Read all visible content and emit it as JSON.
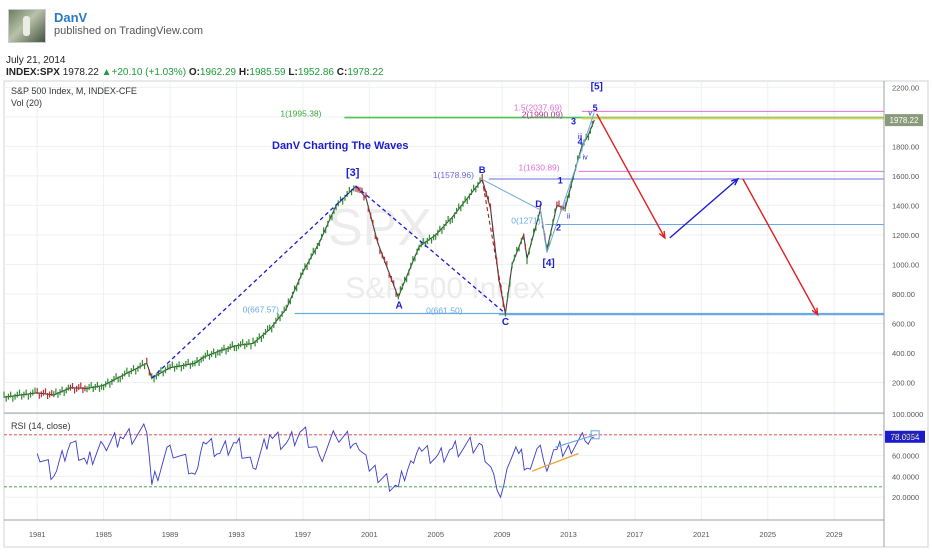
{
  "header": {
    "author": "DanV",
    "published": "published on TradingView.com",
    "date": "July 21, 2014"
  },
  "quote": {
    "symbol": "INDEX:SPX",
    "last": "1978.22",
    "change": "+20.10 (+1.03%)",
    "o_label": "O:",
    "o": "1962.29",
    "h_label": "H:",
    "h": "1985.59",
    "l_label": "L:",
    "l": "1952.86",
    "c_label": "C:",
    "c": "1978.22"
  },
  "chart": {
    "title_line": "S&P 500 Index, M, INDEX-CFE",
    "volume_label": "Vol (20)",
    "watermark_symbol": "SPX",
    "watermark_name": "S&P 500 Index",
    "annotation": "DanV Charting The Waves",
    "last_price_label": "1978.22",
    "rsi_label": "RSI (14, close)",
    "rsi_value_label": "78.0954",
    "wave_labels": [
      "[3]",
      "A",
      "B",
      "C",
      "D",
      "[4]",
      "[5]",
      "1",
      "2",
      "3",
      "4",
      "5",
      "i",
      "ii",
      "iii",
      "iv",
      "v"
    ],
    "fib_labels": [
      "0(667.57)",
      "1(1995.38)",
      "1(1578.96)",
      "0(661.50)",
      "0(1271)",
      "1(1630.89)",
      "1.5(2037.69)",
      "2(1990.09)"
    ],
    "colors": {
      "price_up": "#2e8b2e",
      "price_down": "#b03030",
      "wave_line": "#1b1bd0",
      "fib_green": "#4fc24f",
      "fib_blue": "#6aa8e6",
      "fib_pink": "#e070d0",
      "projection_red": "#e02020",
      "projection_blue": "#1b1bd0",
      "rsi_line": "#3b3bcc",
      "rsi_upper": "#e04040",
      "rsi_lower": "#2e9c2e"
    }
  },
  "chart_data": {
    "type": "line",
    "title": "S&P 500 Index, M, INDEX-CFE",
    "xlabel": "",
    "ylabel": "",
    "x_ticks": [
      "1981",
      "1985",
      "1989",
      "1993",
      "1997",
      "2001",
      "2005",
      "2009",
      "2013",
      "2017",
      "2021",
      "2025",
      "2029"
    ],
    "x_range": [
      1979,
      2032
    ],
    "y_ticks": [
      200,
      400,
      600,
      800,
      1000,
      1200,
      1400,
      1600,
      1800,
      2000,
      2200
    ],
    "y_tick_labels": [
      "200.00",
      "400.00",
      "600.00",
      "800.00",
      "1000.00",
      "1200.00",
      "1400.00",
      "1600.00",
      "1800.00",
      "2000.00",
      "2200.00"
    ],
    "ylim": [
      0,
      2250
    ],
    "grid": true,
    "series": [
      {
        "values": [
          [
            1979,
            100
          ],
          [
            1981,
            130
          ],
          [
            1982,
            115
          ],
          [
            1983,
            165
          ],
          [
            1984,
            160
          ],
          [
            1985,
            180
          ],
          [
            1986,
            240
          ],
          [
            1987.6,
            330
          ],
          [
            1987.9,
            230
          ],
          [
            1989,
            300
          ],
          [
            1990.5,
            330
          ],
          [
            1991,
            370
          ],
          [
            1992,
            415
          ],
          [
            1993,
            450
          ],
          [
            1994,
            465
          ],
          [
            1995,
            560
          ],
          [
            1996,
            700
          ],
          [
            1997,
            950
          ],
          [
            1998,
            1150
          ],
          [
            1999,
            1400
          ],
          [
            2000.2,
            1530
          ],
          [
            2000.8,
            1450
          ],
          [
            2001.5,
            1150
          ],
          [
            2002.75,
            777
          ],
          [
            2003,
            850
          ],
          [
            2004,
            1120
          ],
          [
            2005,
            1200
          ],
          [
            2006,
            1320
          ],
          [
            2007.8,
            1576
          ],
          [
            2008.3,
            1380
          ],
          [
            2008.8,
            900
          ],
          [
            2009.2,
            667
          ],
          [
            2009.6,
            1000
          ],
          [
            2010.3,
            1200
          ],
          [
            2010.5,
            1040
          ],
          [
            2011.3,
            1370
          ],
          [
            2011.7,
            1100
          ],
          [
            2012.3,
            1400
          ],
          [
            2012.8,
            1380
          ],
          [
            2013.3,
            1600
          ],
          [
            2013.8,
            1800
          ],
          [
            2014.2,
            1880
          ],
          [
            2014.55,
            1978
          ]
        ]
      }
    ],
    "levels": [
      {
        "label": "0(667.57)",
        "value": 667.57
      },
      {
        "label": "0(661.50)",
        "value": 661.5
      },
      {
        "label": "1(1578.96)",
        "value": 1578.96
      },
      {
        "label": "0(1271)",
        "value": 1271
      },
      {
        "label": "1(1630.89)",
        "value": 1630.89
      },
      {
        "label": "1(1995.38)",
        "value": 1995.38
      },
      {
        "label": "1.5(2037.69)",
        "value": 2037.69
      },
      {
        "label": "2(1990.09)",
        "value": 1990.09
      }
    ],
    "projection": [
      [
        2014.7,
        2020
      ],
      [
        2018.8,
        1180
      ],
      [
        2023.2,
        1580
      ],
      [
        2028,
        660
      ]
    ],
    "rsi": {
      "name": "RSI (14, close)",
      "ylim": [
        0,
        100
      ],
      "y_ticks": [
        20,
        40,
        60,
        80,
        100
      ],
      "y_tick_labels": [
        "20.0000",
        "40.0000",
        "60.0000",
        "80.0000",
        "100.0000"
      ],
      "upper": 80,
      "lower": 30,
      "last": 78.0954,
      "values": [
        [
          1981,
          62
        ],
        [
          1982,
          40
        ],
        [
          1983,
          72
        ],
        [
          1984,
          52
        ],
        [
          1985,
          70
        ],
        [
          1986,
          78
        ],
        [
          1987.6,
          82
        ],
        [
          1987.9,
          32
        ],
        [
          1989,
          70
        ],
        [
          1990.5,
          42
        ],
        [
          1991,
          73
        ],
        [
          1992,
          62
        ],
        [
          1993,
          72
        ],
        [
          1994,
          48
        ],
        [
          1995,
          80
        ],
        [
          1996,
          72
        ],
        [
          1997,
          85
        ],
        [
          1998,
          60
        ],
        [
          1999,
          78
        ],
        [
          2000.2,
          72
        ],
        [
          2001,
          45
        ],
        [
          2002.75,
          30
        ],
        [
          2003.5,
          55
        ],
        [
          2004,
          68
        ],
        [
          2005,
          58
        ],
        [
          2006,
          67
        ],
        [
          2007.8,
          70
        ],
        [
          2008.5,
          42
        ],
        [
          2008.9,
          20
        ],
        [
          2009.5,
          55
        ],
        [
          2010,
          62
        ],
        [
          2010.5,
          48
        ],
        [
          2011.3,
          70
        ],
        [
          2011.7,
          45
        ],
        [
          2012.3,
          66
        ],
        [
          2013,
          70
        ],
        [
          2014,
          74
        ],
        [
          2014.55,
          78
        ]
      ]
    }
  }
}
